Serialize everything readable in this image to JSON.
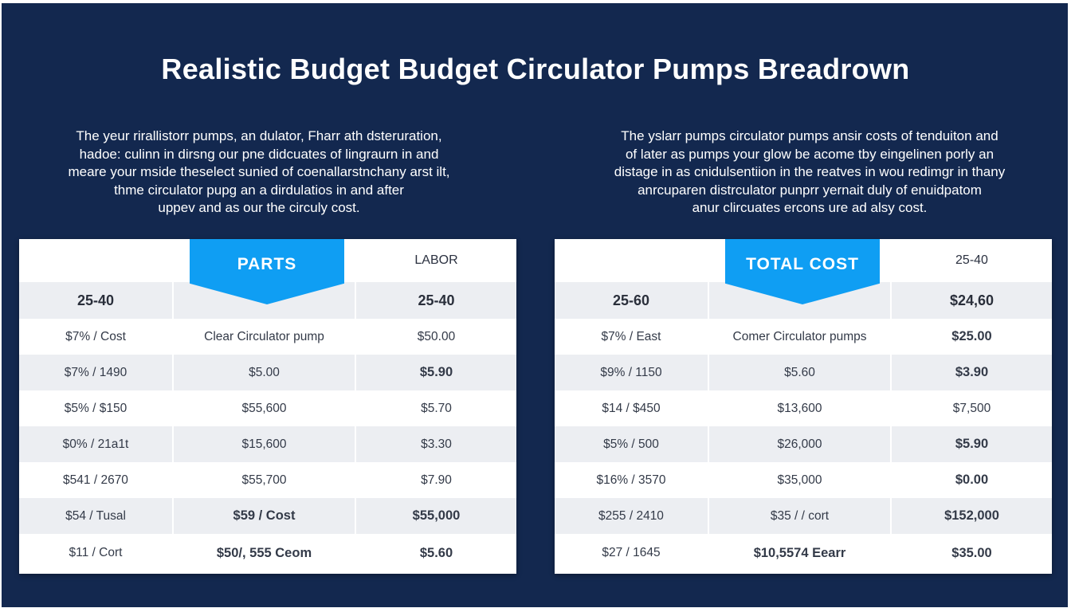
{
  "title": "Realistic Budget Budget Circulator Pumps Breadrown",
  "left_intro": [
    "The yeur rirallistorr pumps, an dulator, Fharr ath dsteruration,",
    "hadoe: culinn in dirsng our pne didcuates of lingraurn in and",
    "meare your mside theselect sunied of coenallarstnchany arst ilt,",
    "thme circulator pupg an a dirdulatios in and after",
    "uppev and as our the circuly cost."
  ],
  "right_intro": [
    "The yslarr pumps circulator pumps ansir costs of tenduiton and",
    "of later as pumps your glow be acome tby eingelinen porly an",
    "distage in as cnidulsentiion in the reatves in wou redimgr in thany",
    "anrcuparen distrculator punprr yernait duly of enuidpatom",
    "anur clircuates ercons ure ad alsy cost."
  ],
  "left_table": {
    "header": [
      "",
      "PARTS",
      "LABOR"
    ],
    "subheader": [
      "25-40",
      "",
      "25-40"
    ],
    "rows": [
      [
        "$7% / Cost",
        "Clear Circulator pump",
        "$50.00"
      ],
      [
        "$7% / 1490",
        "$5.00",
        "$5.90"
      ],
      [
        "$5% / $150",
        "$55,600",
        "$5.70"
      ],
      [
        "$0% / 21a1t",
        "$15,600",
        "$3.30"
      ],
      [
        "$541 / 2670",
        "$55,700",
        "$7.90"
      ],
      [
        "$54 / Tusal",
        "$59 / Cost",
        "$55,000"
      ],
      [
        "$11 / Cort",
        "$50/, 555 Ceom",
        "$5.60"
      ]
    ]
  },
  "right_table": {
    "header": [
      "",
      "TOTAL COST",
      "25-40"
    ],
    "subheader": [
      "25-60",
      "",
      "$24,60"
    ],
    "rows": [
      [
        "$7% / East",
        "Comer Circulator pumps",
        "$25.00"
      ],
      [
        "$9% / 1150",
        "$5.60",
        "$3.90"
      ],
      [
        "$14 / $450",
        "$13,600",
        "$7,500"
      ],
      [
        "$5% / 500",
        "$26,000",
        "$5.90"
      ],
      [
        "$16% / 3570",
        "$35,000",
        "$0.00"
      ],
      [
        "$255 / 2410",
        "$35 / / cort",
        "$152,000"
      ],
      [
        "$27 / 1645",
        "$10,5574 Eearr",
        "$35.00"
      ]
    ]
  },
  "colors": {
    "background": "#13284f",
    "ribbon": "#0f9ef3",
    "row_shade": "#eceef2"
  }
}
